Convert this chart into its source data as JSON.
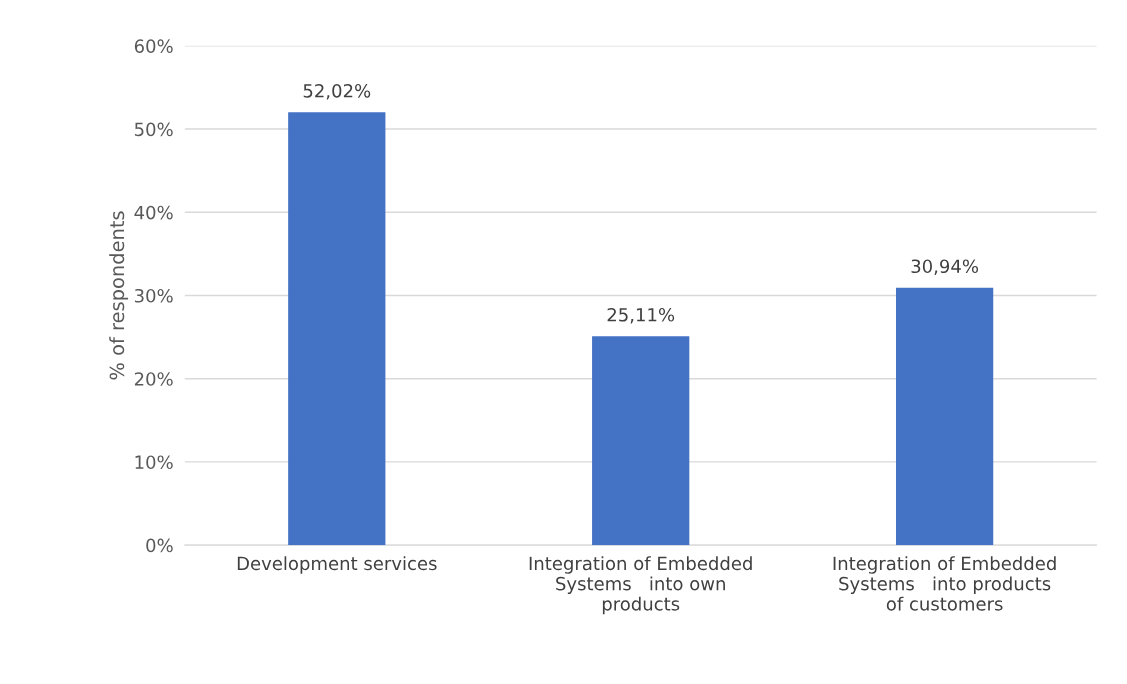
{
  "chart_data": {
    "type": "bar",
    "ylabel": "% of respondents",
    "categories": [
      "Development services",
      "Integration of Embedded\nSystems   into own\nproducts",
      "Integration of Embedded\nSystems   into products\nof customers"
    ],
    "values": [
      52.02,
      25.11,
      30.94
    ],
    "color": "#4472c4",
    "value_labels": [
      "52,02%",
      "25,11%",
      "30,94%"
    ],
    "ylim": [
      0,
      60
    ],
    "yticks": [
      {
        "value": 0,
        "label": "0%"
      },
      {
        "value": 10,
        "label": "10%"
      },
      {
        "value": 20,
        "label": "20%"
      },
      {
        "value": 30,
        "label": "30%"
      },
      {
        "value": 40,
        "label": "40%"
      },
      {
        "value": 50,
        "label": "50%"
      },
      {
        "value": 60,
        "label": "60%"
      }
    ],
    "grid": "y",
    "legend": false
  }
}
